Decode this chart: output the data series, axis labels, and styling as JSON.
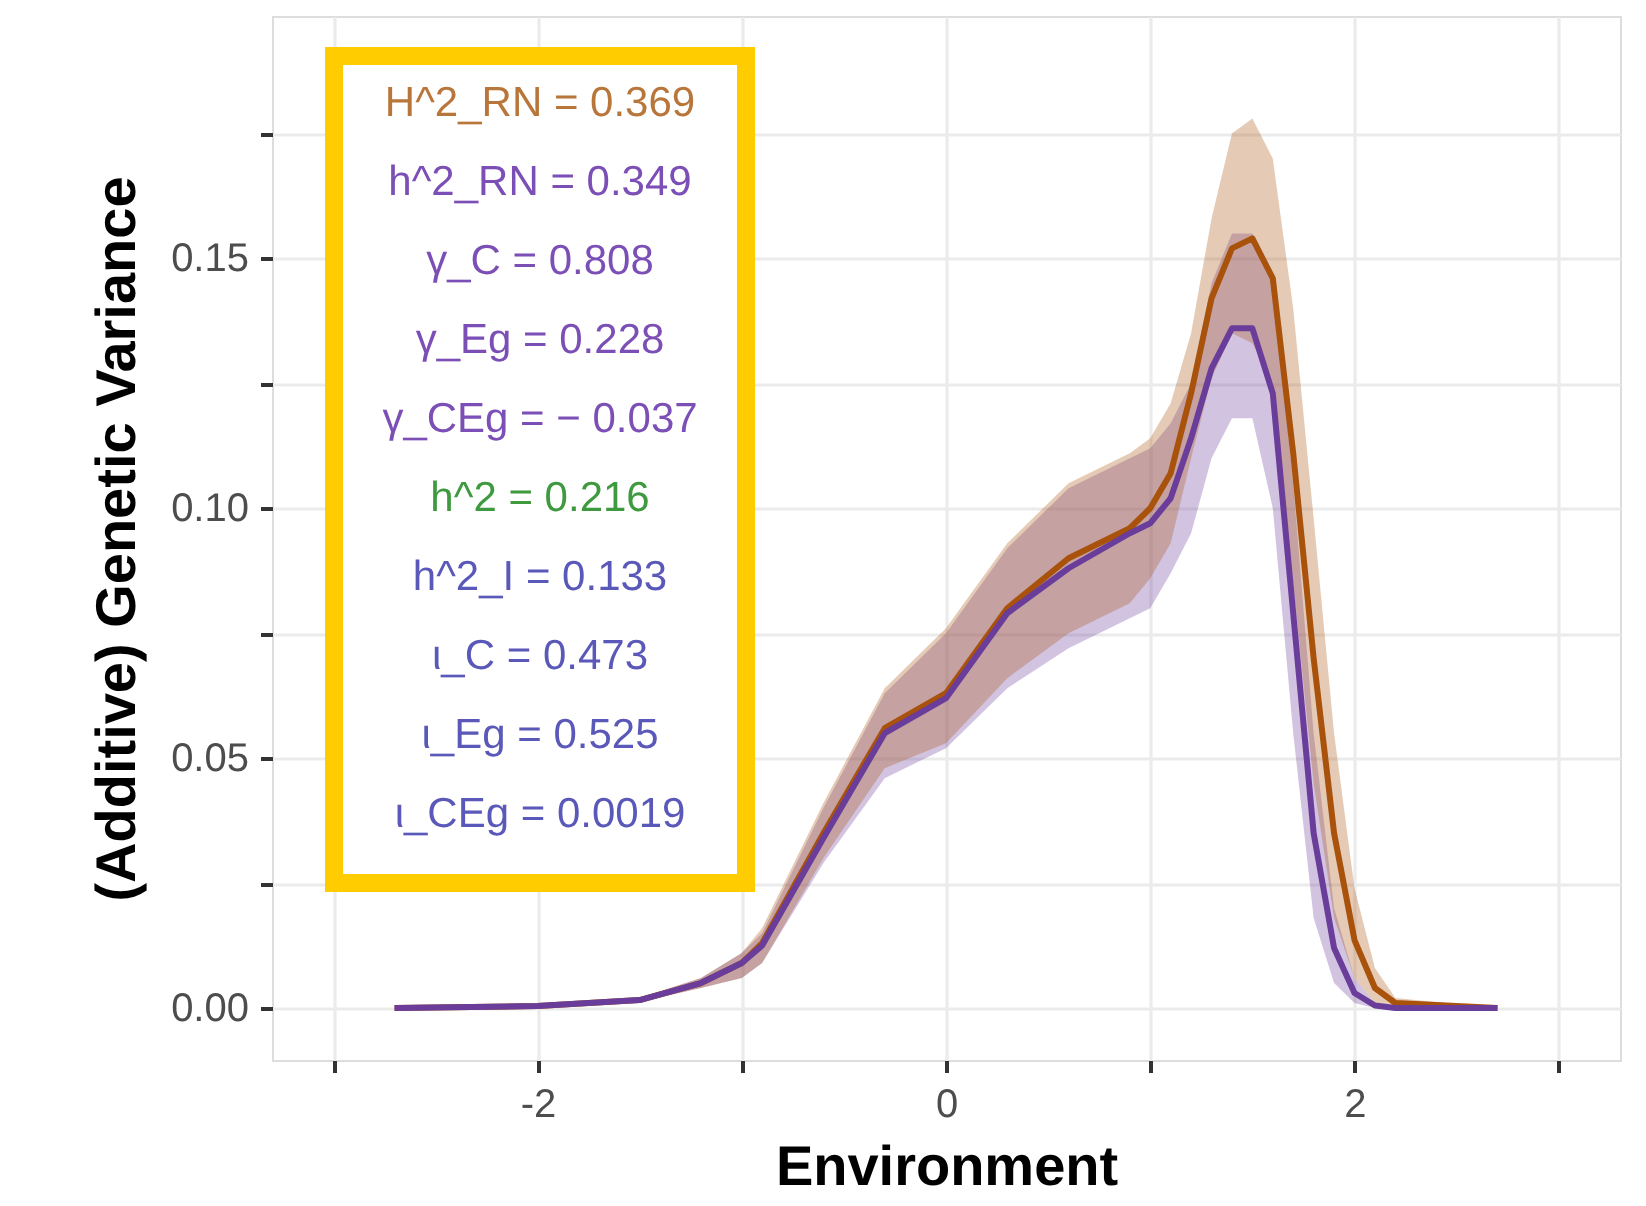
{
  "chart_data": {
    "type": "line",
    "xlabel": "Environment",
    "ylabel": "(Additive) Genetic Variance",
    "x": [
      -2.7,
      -2.0,
      -1.5,
      -1.2,
      -1.0,
      -0.9,
      -0.6,
      -0.3,
      0.0,
      0.3,
      0.6,
      0.9,
      1.0,
      1.1,
      1.2,
      1.3,
      1.4,
      1.5,
      1.6,
      1.7,
      1.8,
      1.9,
      2.0,
      2.1,
      2.2,
      2.7
    ],
    "series": [
      {
        "color": "#6a3d9a",
        "values": [
          0,
          0.0004,
          0.0016,
          0.005,
          0.009,
          0.0125,
          0.034,
          0.055,
          0.062,
          0.079,
          0.088,
          0.095,
          0.097,
          0.102,
          0.114,
          0.128,
          0.136,
          0.136,
          0.123,
          0.079,
          0.035,
          0.012,
          0.003,
          0.0005,
          0,
          0
        ],
        "lower": [
          0,
          0.0003,
          0.0012,
          0.004,
          0.006,
          0.009,
          0.029,
          0.046,
          0.052,
          0.064,
          0.072,
          0.078,
          0.08,
          0.087,
          0.095,
          0.11,
          0.118,
          0.118,
          0.1,
          0.055,
          0.018,
          0.005,
          0.001,
          0,
          0,
          0
        ],
        "upper": [
          0,
          0.0005,
          0.002,
          0.006,
          0.011,
          0.015,
          0.04,
          0.063,
          0.075,
          0.092,
          0.104,
          0.11,
          0.112,
          0.117,
          0.125,
          0.145,
          0.155,
          0.155,
          0.145,
          0.105,
          0.055,
          0.02,
          0.006,
          0.001,
          0,
          0
        ]
      },
      {
        "color": "#a8520c",
        "values": [
          0,
          0.0004,
          0.0016,
          0.005,
          0.009,
          0.013,
          0.035,
          0.056,
          0.063,
          0.08,
          0.09,
          0.096,
          0.1,
          0.107,
          0.123,
          0.142,
          0.152,
          0.154,
          0.146,
          0.111,
          0.07,
          0.035,
          0.0136,
          0.004,
          0.001,
          0
        ],
        "lower": [
          0,
          0.0003,
          0.0012,
          0.004,
          0.006,
          0.009,
          0.03,
          0.048,
          0.053,
          0.066,
          0.075,
          0.081,
          0.086,
          0.093,
          0.11,
          0.126,
          0.135,
          0.133,
          0.125,
          0.085,
          0.045,
          0.018,
          0.006,
          0.001,
          0,
          0
        ],
        "upper": [
          0,
          0.0005,
          0.002,
          0.006,
          0.011,
          0.016,
          0.041,
          0.064,
          0.076,
          0.093,
          0.105,
          0.111,
          0.114,
          0.121,
          0.135,
          0.158,
          0.175,
          0.178,
          0.17,
          0.14,
          0.098,
          0.055,
          0.024,
          0.008,
          0.002,
          0
        ]
      }
    ],
    "xlim": [
      -3.3,
      3.3
    ],
    "xticks": [
      {
        "value": -3,
        "label": null
      },
      -2,
      {
        "value": -1,
        "label": null
      },
      0,
      {
        "value": 1,
        "label": null
      },
      2,
      {
        "value": 3,
        "label": null
      }
    ],
    "ylim": [
      -0.0104,
      0.1985
    ],
    "yticks": [
      {
        "value": 0,
        "label": "0.00"
      },
      {
        "value": 0.025,
        "label": null
      },
      {
        "value": 0.05,
        "label": "0.05"
      },
      {
        "value": 0.075,
        "label": null
      },
      {
        "value": 0.1,
        "label": "0.10"
      },
      {
        "value": 0.125,
        "label": null
      },
      {
        "value": 0.15,
        "label": "0.15"
      },
      {
        "value": 0.175,
        "label": null
      }
    ],
    "grid": true,
    "line_style": "solid",
    "marker": "none",
    "annotations": [
      "H^2_RN = 0.369",
      "h^2_RN = 0.349",
      "γ_C = 0.808",
      "γ_Eg = 0.228",
      "γ_CEg = − 0.037",
      "h^2 = 0.216",
      "h^2_I = 0.133",
      "ι_C = 0.473",
      "ι_Eg = 0.525",
      "ι_CEg = 0.0019"
    ]
  }
}
